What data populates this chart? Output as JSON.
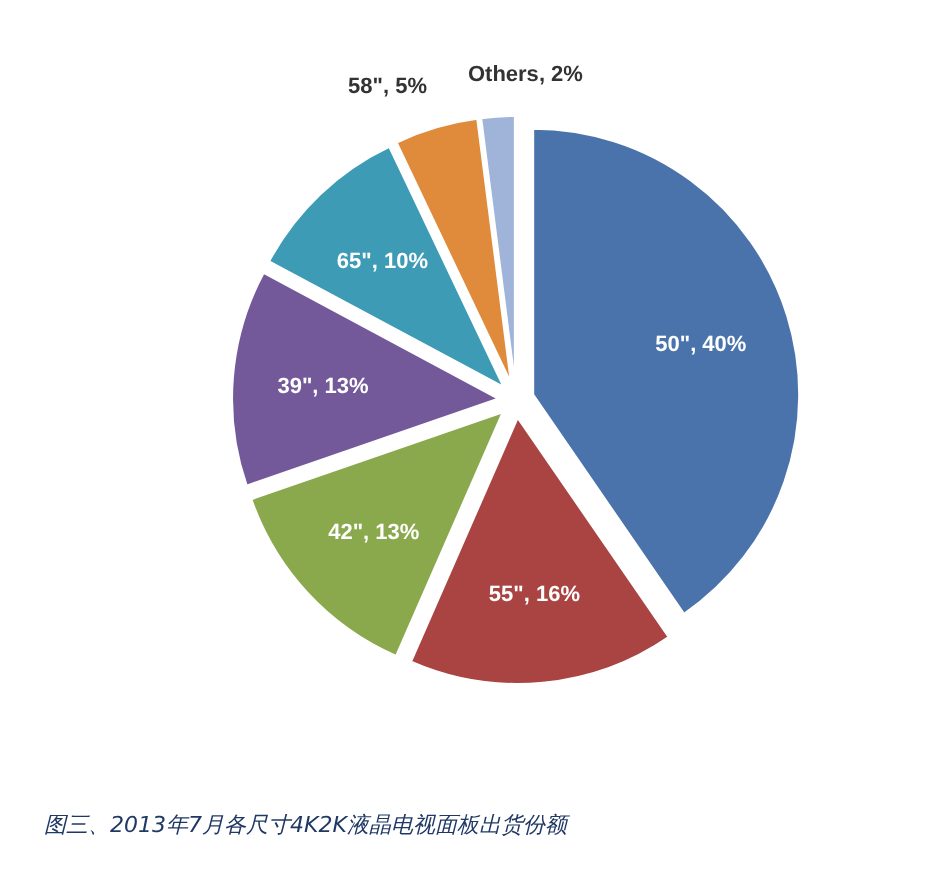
{
  "chart_data": {
    "type": "pie",
    "title": "图三、2013年7月各尺寸4K2K液晶电视面板出货份额",
    "categories": [
      "50\"",
      "55\"",
      "42\"",
      "39\"",
      "65\"",
      "58\"",
      "Others"
    ],
    "values": [
      40,
      16,
      13,
      13,
      10,
      5,
      2
    ],
    "colors": [
      "#4a73ab",
      "#a94442",
      "#8aa84c",
      "#73599a",
      "#3e9bb5",
      "#e08b3c",
      "#9fb4d8"
    ],
    "value_labels": [
      ", 40%",
      ", 16%",
      ", 13%",
      ", 13%",
      ", 10%",
      ", 5%",
      ", 2%"
    ]
  }
}
